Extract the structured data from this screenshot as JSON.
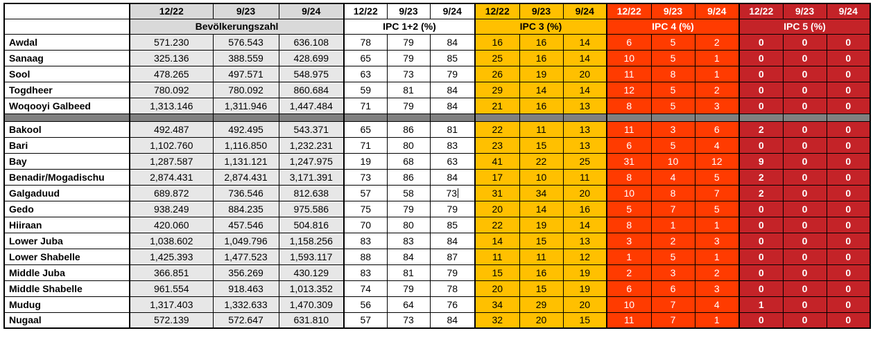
{
  "table": {
    "date_columns": [
      "12/22",
      "9/23",
      "9/24"
    ],
    "column_groups": [
      {
        "id": "pop",
        "label": "Bevölkerungszahl"
      },
      {
        "id": "ipc12",
        "label": "IPC 1+2 (%)"
      },
      {
        "id": "ipc3",
        "label": "IPC 3 (%)"
      },
      {
        "id": "ipc4",
        "label": "IPC 4 (%)"
      },
      {
        "id": "ipc5",
        "label": "IPC 5 (%)"
      }
    ],
    "colors": {
      "ipc3": "#ffc000",
      "ipc4": "#ff3b00",
      "ipc5": "#c42328",
      "population_header": "#d9d9d9",
      "population_cell": "#e7e7e7",
      "separator_row": "#808080"
    },
    "row_groups": [
      {
        "rows": [
          {
            "name": "Awdal",
            "pop": [
              "571.230",
              "576.543",
              "636.108"
            ],
            "ipc12": [
              "78",
              "79",
              "84"
            ],
            "ipc3": [
              "16",
              "16",
              "14"
            ],
            "ipc4": [
              "6",
              "5",
              "2"
            ],
            "ipc5": [
              "0",
              "0",
              "0"
            ]
          },
          {
            "name": "Sanaag",
            "pop": [
              "325.136",
              "388.559",
              "428.699"
            ],
            "ipc12": [
              "65",
              "79",
              "85"
            ],
            "ipc3": [
              "25",
              "16",
              "14"
            ],
            "ipc4": [
              "10",
              "5",
              "1"
            ],
            "ipc5": [
              "0",
              "0",
              "0"
            ]
          },
          {
            "name": "Sool",
            "pop": [
              "478.265",
              "497.571",
              "548.975"
            ],
            "ipc12": [
              "63",
              "73",
              "79"
            ],
            "ipc3": [
              "26",
              "19",
              "20"
            ],
            "ipc4": [
              "11",
              "8",
              "1"
            ],
            "ipc5": [
              "0",
              "0",
              "0"
            ]
          },
          {
            "name": "Togdheer",
            "pop": [
              "780.092",
              "780.092",
              "860.684"
            ],
            "ipc12": [
              "59",
              "81",
              "84"
            ],
            "ipc3": [
              "29",
              "14",
              "14"
            ],
            "ipc4": [
              "12",
              "5",
              "2"
            ],
            "ipc5": [
              "0",
              "0",
              "0"
            ]
          },
          {
            "name": "Woqooyi Galbeed",
            "pop": [
              "1,313.146",
              "1,311.946",
              "1,447.484"
            ],
            "ipc12": [
              "71",
              "79",
              "84"
            ],
            "ipc3": [
              "21",
              "16",
              "13"
            ],
            "ipc4": [
              "8",
              "5",
              "3"
            ],
            "ipc5": [
              "0",
              "0",
              "0"
            ]
          }
        ]
      },
      {
        "rows": [
          {
            "name": "Bakool",
            "pop": [
              "492.487",
              "492.495",
              "543.371"
            ],
            "ipc12": [
              "65",
              "86",
              "81"
            ],
            "ipc3": [
              "22",
              "11",
              "13"
            ],
            "ipc4": [
              "11",
              "3",
              "6"
            ],
            "ipc5": [
              "2",
              "0",
              "0"
            ]
          },
          {
            "name": "Bari",
            "pop": [
              "1,102.760",
              "1,116.850",
              "1,232.231"
            ],
            "ipc12": [
              "71",
              "80",
              "83"
            ],
            "ipc3": [
              "23",
              "15",
              "13"
            ],
            "ipc4": [
              "6",
              "5",
              "4"
            ],
            "ipc5": [
              "0",
              "0",
              "0"
            ]
          },
          {
            "name": "Bay",
            "pop": [
              "1,287.587",
              "1,131.121",
              "1,247.975"
            ],
            "ipc12": [
              "19",
              "68",
              "63"
            ],
            "ipc3": [
              "41",
              "22",
              "25"
            ],
            "ipc4": [
              "31",
              "10",
              "12"
            ],
            "ipc5": [
              "9",
              "0",
              "0"
            ]
          },
          {
            "name": "Benadir/Mogadischu",
            "pop": [
              "2,874.431",
              "2,874.431",
              "3,171.391"
            ],
            "ipc12": [
              "73",
              "86",
              "84"
            ],
            "ipc3": [
              "17",
              "10",
              "11"
            ],
            "ipc4": [
              "8",
              "4",
              "5"
            ],
            "ipc5": [
              "2",
              "0",
              "0"
            ]
          },
          {
            "name": "Galgaduud",
            "pop": [
              "689.872",
              "736.546",
              "812.638"
            ],
            "ipc12": [
              "57",
              "58",
              "73"
            ],
            "ipc3": [
              "31",
              "34",
              "20"
            ],
            "ipc4": [
              "10",
              "8",
              "7"
            ],
            "ipc5": [
              "2",
              "0",
              "0"
            ]
          },
          {
            "name": "Gedo",
            "pop": [
              "938.249",
              "884.235",
              "975.586"
            ],
            "ipc12": [
              "75",
              "79",
              "79"
            ],
            "ipc3": [
              "20",
              "14",
              "16"
            ],
            "ipc4": [
              "5",
              "7",
              "5"
            ],
            "ipc5": [
              "0",
              "0",
              "0"
            ]
          },
          {
            "name": "Hiiraan",
            "pop": [
              "420.060",
              "457.546",
              "504.816"
            ],
            "ipc12": [
              "70",
              "80",
              "85"
            ],
            "ipc3": [
              "22",
              "19",
              "14"
            ],
            "ipc4": [
              "8",
              "1",
              "1"
            ],
            "ipc5": [
              "0",
              "0",
              "0"
            ]
          },
          {
            "name": "Lower Juba",
            "pop": [
              "1,038.602",
              "1,049.796",
              "1,158.256"
            ],
            "ipc12": [
              "83",
              "83",
              "84"
            ],
            "ipc3": [
              "14",
              "15",
              "13"
            ],
            "ipc4": [
              "3",
              "2",
              "3"
            ],
            "ipc5": [
              "0",
              "0",
              "0"
            ]
          },
          {
            "name": "Lower Shabelle",
            "pop": [
              "1,425.393",
              "1,477.523",
              "1,593.117"
            ],
            "ipc12": [
              "88",
              "84",
              "87"
            ],
            "ipc3": [
              "11",
              "11",
              "12"
            ],
            "ipc4": [
              "1",
              "5",
              "1"
            ],
            "ipc5": [
              "0",
              "0",
              "0"
            ]
          },
          {
            "name": "Middle Juba",
            "pop": [
              "366.851",
              "356.269",
              "430.129"
            ],
            "ipc12": [
              "83",
              "81",
              "79"
            ],
            "ipc3": [
              "15",
              "16",
              "19"
            ],
            "ipc4": [
              "2",
              "3",
              "2"
            ],
            "ipc5": [
              "0",
              "0",
              "0"
            ]
          },
          {
            "name": "Middle Shabelle",
            "pop": [
              "961.554",
              "918.463",
              "1,013.352"
            ],
            "ipc12": [
              "74",
              "79",
              "78"
            ],
            "ipc3": [
              "20",
              "15",
              "19"
            ],
            "ipc4": [
              "6",
              "6",
              "3"
            ],
            "ipc5": [
              "0",
              "0",
              "0"
            ]
          },
          {
            "name": "Mudug",
            "pop": [
              "1,317.403",
              "1,332.633",
              "1,470.309"
            ],
            "ipc12": [
              "56",
              "64",
              "76"
            ],
            "ipc3": [
              "34",
              "29",
              "20"
            ],
            "ipc4": [
              "10",
              "7",
              "4"
            ],
            "ipc5": [
              "1",
              "0",
              "0"
            ]
          },
          {
            "name": "Nugaal",
            "pop": [
              "572.139",
              "572.647",
              "631.810"
            ],
            "ipc12": [
              "57",
              "73",
              "84"
            ],
            "ipc3": [
              "32",
              "20",
              "15"
            ],
            "ipc4": [
              "11",
              "7",
              "1"
            ],
            "ipc5": [
              "0",
              "0",
              "0"
            ]
          }
        ]
      }
    ],
    "text_caret": {
      "group_index": 1,
      "row_index": 4,
      "field": "ipc12",
      "value_index": 2
    }
  }
}
